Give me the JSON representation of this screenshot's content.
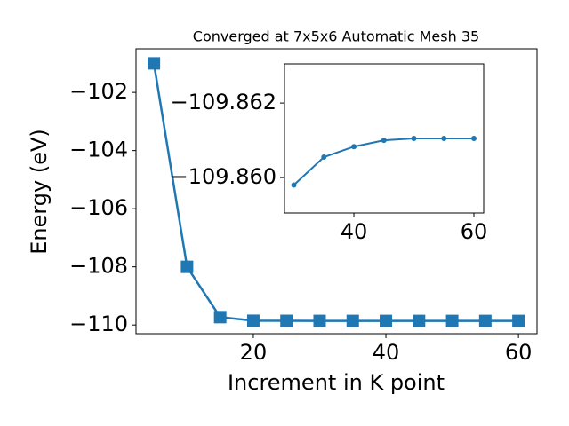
{
  "chart_data": [
    {
      "type": "line",
      "title": "Converged at 7x5x6 Automatic Mesh 35",
      "x_label": "Increment in K point",
      "y_label": "Energy (eV)",
      "x": [
        5,
        10,
        15,
        20,
        25,
        30,
        35,
        40,
        45,
        50,
        55,
        60
      ],
      "series": [
        {
          "color": "#1f77b4",
          "marker": "square",
          "values": [
            -101.0,
            -108.0,
            -109.73,
            -109.855,
            -109.858,
            -109.8598,
            -109.8606,
            -109.8608,
            -109.861,
            -109.86105,
            -109.86105,
            -109.86105
          ]
        }
      ],
      "xlim": [
        2.3,
        62.8
      ],
      "xticks": [
        20,
        40,
        60
      ],
      "ylim": [
        -110.3,
        -100.5
      ],
      "yticks": [
        {
          "value": -110,
          "label": "−110"
        },
        {
          "value": -108,
          "label": "−108"
        },
        {
          "value": -106,
          "label": "−106"
        },
        {
          "value": -104,
          "label": "−104"
        },
        {
          "value": -102,
          "label": "−102"
        }
      ]
    },
    {
      "type": "line",
      "x": [
        30,
        35,
        40,
        45,
        50,
        55,
        60
      ],
      "series": [
        {
          "color": "#1f77b4",
          "marker": "circle",
          "values": [
            -109.8598,
            -109.86055,
            -109.86083,
            -109.861,
            -109.86105,
            -109.86105,
            -109.86105
          ]
        }
      ],
      "xlim": [
        28.44,
        61.63
      ],
      "xticks": [
        40,
        60
      ],
      "ylim": [
        -109.85905,
        -109.86305
      ],
      "yticks": [
        {
          "value": -109.86,
          "label": "−109.860"
        },
        {
          "value": -109.862,
          "label": "−109.862"
        }
      ]
    }
  ]
}
